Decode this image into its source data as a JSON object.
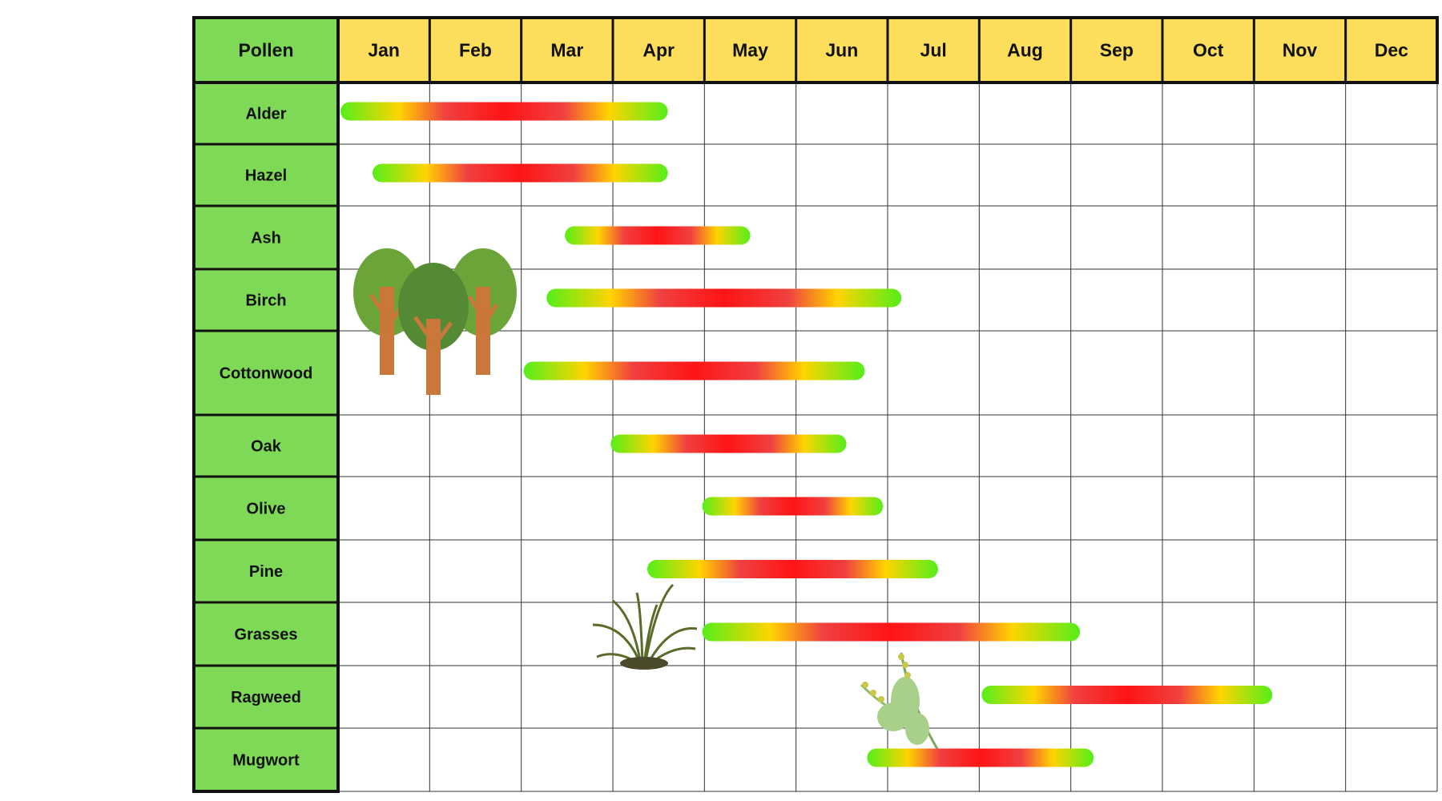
{
  "chart_data": {
    "type": "gantt",
    "title": "",
    "corner_label": "Pollen",
    "months": [
      "Jan",
      "Feb",
      "Mar",
      "Apr",
      "May",
      "Jun",
      "Jul",
      "Aug",
      "Sep",
      "Oct",
      "Nov",
      "Dec"
    ],
    "x_unit": "months from start of January (0-12)",
    "series": [
      {
        "name": "Alder",
        "start": 0.0,
        "end": 3.6
      },
      {
        "name": "Hazel",
        "start": 0.35,
        "end": 3.6
      },
      {
        "name": "Ash",
        "start": 2.45,
        "end": 4.5
      },
      {
        "name": "Birch",
        "start": 2.25,
        "end": 6.15
      },
      {
        "name": "Cottonwood",
        "start": 2.0,
        "end": 5.75
      },
      {
        "name": "Oak",
        "start": 2.95,
        "end": 5.55
      },
      {
        "name": "Olive",
        "start": 3.95,
        "end": 5.95
      },
      {
        "name": "Pine",
        "start": 3.35,
        "end": 6.55
      },
      {
        "name": "Grasses",
        "start": 3.95,
        "end": 8.1
      },
      {
        "name": "Ragweed",
        "start": 7.0,
        "end": 10.2
      },
      {
        "name": "Mugwort",
        "start": 5.75,
        "end": 8.25
      }
    ],
    "gradient_colors": {
      "low": "#55ee1a",
      "mid": "#ffd400",
      "high": "#ff1414"
    },
    "colors": {
      "header_months": "#fddd5c",
      "label_column": "#7ed957",
      "grid": "#222222"
    },
    "illustrations": [
      "trees-icon",
      "grass-icon",
      "ragweed-plant-icon"
    ]
  }
}
